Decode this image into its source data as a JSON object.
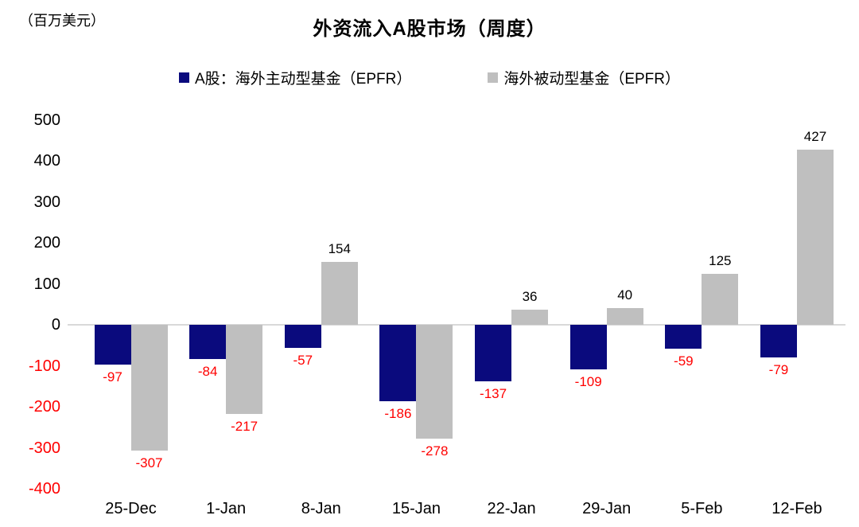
{
  "title": "外资流入A股市场（周度）",
  "unit_label": "（百万美元）",
  "legend": [
    {
      "label": "A股：海外主动型基金（EPFR）",
      "color": "#0a0a7d"
    },
    {
      "label": "海外被动型基金（EPFR）",
      "color": "#bfbfbf"
    }
  ],
  "colors": {
    "active_bar": "#0a0a7d",
    "passive_bar": "#bfbfbf",
    "negative_text": "#ff0000",
    "positive_text": "#000000",
    "zero_line": "#d9d9d9"
  },
  "chart_data": {
    "type": "bar",
    "title": "外资流入A股市场（周度）",
    "ylabel": "（百万美元）",
    "categories": [
      "25-Dec",
      "1-Jan",
      "8-Jan",
      "15-Jan",
      "22-Jan",
      "29-Jan",
      "5-Feb",
      "12-Feb"
    ],
    "series": [
      {
        "name": "A股：海外主动型基金（EPFR）",
        "color": "#0a0a7d",
        "values": [
          -97,
          -84,
          -57,
          -186,
          -137,
          -109,
          -59,
          -79
        ]
      },
      {
        "name": "海外被动型基金（EPFR）",
        "color": "#bfbfbf",
        "values": [
          -307,
          -217,
          154,
          -278,
          36,
          40,
          125,
          427
        ]
      }
    ],
    "ylim": [
      -400,
      500
    ],
    "ytick_step": 100,
    "grid": false,
    "legend_position": "top",
    "data_labels": true,
    "negative_tick_and_label_color": "#ff0000"
  }
}
